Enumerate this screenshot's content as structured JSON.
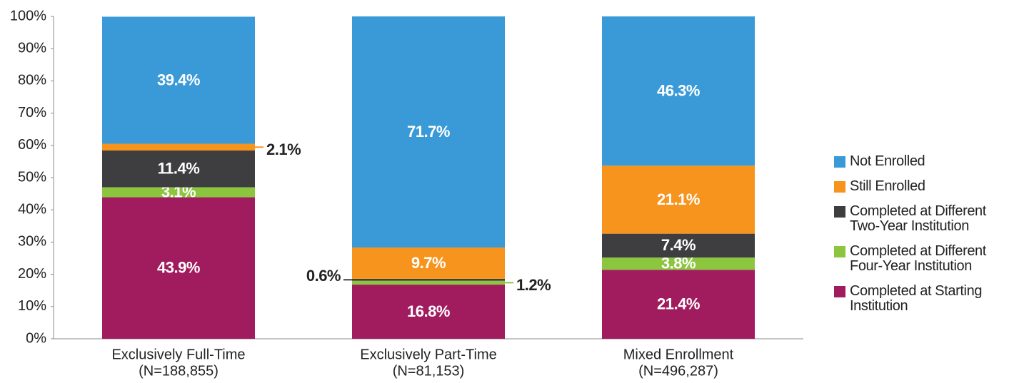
{
  "chart_data": {
    "type": "stacked_bar",
    "categories": [
      [
        "Exclusively Full-Time",
        "(N=188,855)"
      ],
      [
        "Exclusively Part-Time",
        "(N=81,153)"
      ],
      [
        "Mixed Enrollment",
        "(N=496,287)"
      ]
    ],
    "series": [
      {
        "name": "Completed at Starting Institution",
        "color": "#a01c5e",
        "values": [
          43.9,
          16.8,
          21.4
        ],
        "value_labels": [
          "43.9%",
          "16.8%",
          "21.4%"
        ]
      },
      {
        "name": "Completed at Different Four-Year Institution",
        "color": "#8cc63f",
        "values": [
          3.1,
          1.2,
          3.8
        ],
        "value_labels": [
          "3.1%",
          "1.2%",
          "3.8%"
        ]
      },
      {
        "name": "Completed at Different Two-Year Institution",
        "color": "#3e3e40",
        "values": [
          11.4,
          0.6,
          7.4
        ],
        "value_labels": [
          "11.4%",
          "0.6%",
          "7.4%"
        ]
      },
      {
        "name": "Still Enrolled",
        "color": "#f7941d",
        "values": [
          2.1,
          9.7,
          21.1
        ],
        "value_labels": [
          "2.1%",
          "9.7%",
          "21.1%"
        ]
      },
      {
        "name": "Not Enrolled",
        "color": "#3a9ad8",
        "values": [
          39.4,
          71.7,
          46.3
        ],
        "value_labels": [
          "39.4%",
          "71.7%",
          "46.3%"
        ]
      }
    ],
    "ylim": [
      0,
      100
    ],
    "yticks": [
      {
        "value": 0,
        "label": "0%"
      },
      {
        "value": 10,
        "label": "10%"
      },
      {
        "value": 20,
        "label": "20%"
      },
      {
        "value": 30,
        "label": "30%"
      },
      {
        "value": 40,
        "label": "40%"
      },
      {
        "value": 50,
        "label": "50%"
      },
      {
        "value": 60,
        "label": "60%"
      },
      {
        "value": 70,
        "label": "70%"
      },
      {
        "value": 80,
        "label": "80%"
      },
      {
        "value": 90,
        "label": "90%"
      },
      {
        "value": 100,
        "label": "100%"
      }
    ],
    "legend": "right"
  }
}
